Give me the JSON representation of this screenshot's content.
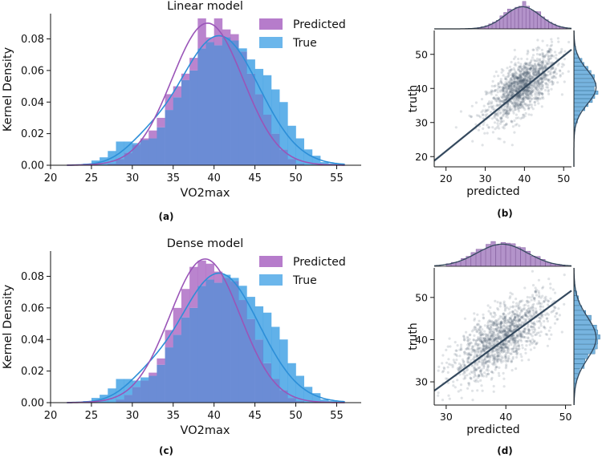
{
  "colors": {
    "predicted": "#a965c2",
    "predicted_line": "#9a55b8",
    "true": "#3a9ee4",
    "true_line": "#2d8fd8",
    "overlap": "#6b8cd5",
    "scatter": "#3d4f63",
    "regression": "#34495e",
    "marg_fill_top": "#9a6fb8",
    "marg_fill_right": "#4a9bd4"
  },
  "panel_labels": [
    "(a)",
    "(b)",
    "(c)",
    "(d)"
  ],
  "chart_data": [
    {
      "id": "a",
      "type": "bar",
      "subtype": "histogram-with-kde",
      "title": "Linear model",
      "xlabel": "VO2max",
      "ylabel": "Kernel Density",
      "xlim": [
        20,
        58
      ],
      "ylim": [
        0,
        0.096
      ],
      "xticks": [
        "20",
        "25",
        "30",
        "35",
        "40",
        "45",
        "50",
        "55"
      ],
      "yticks": [
        "0.00",
        "0.02",
        "0.04",
        "0.06",
        "0.08"
      ],
      "legend": [
        "Predicted",
        "True"
      ],
      "legend_position": "top-right",
      "bin_edges": [
        24,
        25,
        26,
        27,
        28,
        29,
        30,
        31,
        32,
        33,
        34,
        35,
        36,
        37,
        38,
        39,
        40,
        41,
        42,
        43,
        44,
        45,
        46,
        47,
        48,
        49,
        50,
        51,
        52,
        53,
        54,
        55
      ],
      "series": [
        {
          "name": "Predicted",
          "hist": [
            0,
            0,
            0,
            0.001,
            0.004,
            0.008,
            0.013,
            0.017,
            0.022,
            0.03,
            0.045,
            0.05,
            0.058,
            0.068,
            0.093,
            0.081,
            0.093,
            0.086,
            0.083,
            0.072,
            0.058,
            0.045,
            0.032,
            0.02,
            0.01,
            0.004,
            0.001,
            0,
            0,
            0,
            0
          ],
          "kde": {
            "mean": 39.2,
            "sd": 4.35,
            "peak": 0.09
          }
        },
        {
          "name": "True",
          "hist": [
            0.001,
            0.003,
            0.005,
            0.009,
            0.015,
            0.015,
            0.014,
            0.016,
            0.017,
            0.024,
            0.035,
            0.043,
            0.054,
            0.06,
            0.074,
            0.078,
            0.076,
            0.081,
            0.079,
            0.074,
            0.067,
            0.061,
            0.057,
            0.048,
            0.04,
            0.025,
            0.017,
            0.01,
            0.006,
            0.002,
            0.001
          ],
          "kde": {
            "mean": 40.6,
            "sd": 4.9,
            "peak": 0.082,
            "shoulder_mean": 31.5,
            "shoulder_sd": 2.6,
            "shoulder_amp": 0.008
          }
        }
      ]
    },
    {
      "id": "b",
      "type": "scatter",
      "subtype": "joint-plot",
      "xlabel": "predicted",
      "ylabel": "truth",
      "xlim": [
        17,
        52
      ],
      "ylim": [
        17,
        57
      ],
      "xticks": [
        "20",
        "30",
        "40",
        "50"
      ],
      "yticks": [
        "20",
        "30",
        "40",
        "50"
      ],
      "n_points": 1400,
      "cloud": {
        "x_mean": 39.5,
        "x_sd": 4.5,
        "y_mean": 40.4,
        "y_sd": 5.0,
        "corr": 0.66
      },
      "regression": {
        "x": [
          17,
          52
        ],
        "y": [
          18.8,
          51.4
        ]
      },
      "marginal_top": {
        "mean": 39.5,
        "sd": 4.5,
        "range": [
          28,
          51
        ]
      },
      "marginal_right": {
        "mean": 40.4,
        "sd": 5.0,
        "range": [
          25,
          56
        ]
      }
    },
    {
      "id": "c",
      "type": "bar",
      "subtype": "histogram-with-kde",
      "title": "Dense model",
      "xlabel": "VO2max",
      "ylabel": "Kernel Density",
      "xlim": [
        20,
        58
      ],
      "ylim": [
        0,
        0.096
      ],
      "xticks": [
        "20",
        "25",
        "30",
        "35",
        "40",
        "45",
        "50",
        "55"
      ],
      "yticks": [
        "0.00",
        "0.02",
        "0.04",
        "0.06",
        "0.08"
      ],
      "legend": [
        "Predicted",
        "True"
      ],
      "legend_position": "top-right",
      "bin_edges": [
        24,
        25,
        26,
        27,
        28,
        29,
        30,
        31,
        32,
        33,
        34,
        35,
        36,
        37,
        38,
        39,
        40,
        41,
        42,
        43,
        44,
        45,
        46,
        47,
        48,
        49,
        50,
        51,
        52,
        53,
        54,
        55
      ],
      "series": [
        {
          "name": "Predicted",
          "hist": [
            0,
            0,
            0,
            0,
            0.002,
            0.005,
            0.01,
            0.014,
            0.019,
            0.028,
            0.046,
            0.06,
            0.072,
            0.086,
            0.09,
            0.088,
            0.083,
            0.079,
            0.077,
            0.065,
            0.053,
            0.04,
            0.025,
            0.015,
            0.008,
            0.003,
            0.001,
            0,
            0,
            0,
            0
          ],
          "kde": {
            "mean": 38.9,
            "sd": 4.3,
            "peak": 0.091
          }
        },
        {
          "name": "True",
          "hist": [
            0.001,
            0.003,
            0.005,
            0.009,
            0.015,
            0.015,
            0.014,
            0.016,
            0.017,
            0.024,
            0.035,
            0.043,
            0.054,
            0.06,
            0.074,
            0.078,
            0.076,
            0.081,
            0.079,
            0.074,
            0.067,
            0.061,
            0.057,
            0.048,
            0.04,
            0.025,
            0.017,
            0.01,
            0.006,
            0.002,
            0.001
          ],
          "kde": {
            "mean": 40.6,
            "sd": 4.9,
            "peak": 0.082,
            "shoulder_mean": 31.5,
            "shoulder_sd": 2.6,
            "shoulder_amp": 0.008
          }
        }
      ]
    },
    {
      "id": "d",
      "type": "scatter",
      "subtype": "joint-plot",
      "xlabel": "predicted",
      "ylabel": "truth",
      "xlim": [
        28,
        51
      ],
      "ylim": [
        24.5,
        57
      ],
      "xticks": [
        "30",
        "40",
        "50"
      ],
      "yticks": [
        "30",
        "40",
        "50"
      ],
      "n_points": 1400,
      "cloud": {
        "x_mean": 39.4,
        "x_sd": 4.2,
        "y_mean": 40.4,
        "y_sd": 5.0,
        "corr": 0.72
      },
      "regression": {
        "x": [
          28,
          51
        ],
        "y": [
          27.9,
          51.6
        ]
      },
      "marginal_top": {
        "mean": 39.4,
        "sd": 4.2,
        "range": [
          30,
          50
        ]
      },
      "marginal_right": {
        "mean": 40.4,
        "sd": 5.0,
        "range": [
          25,
          55
        ]
      }
    }
  ]
}
